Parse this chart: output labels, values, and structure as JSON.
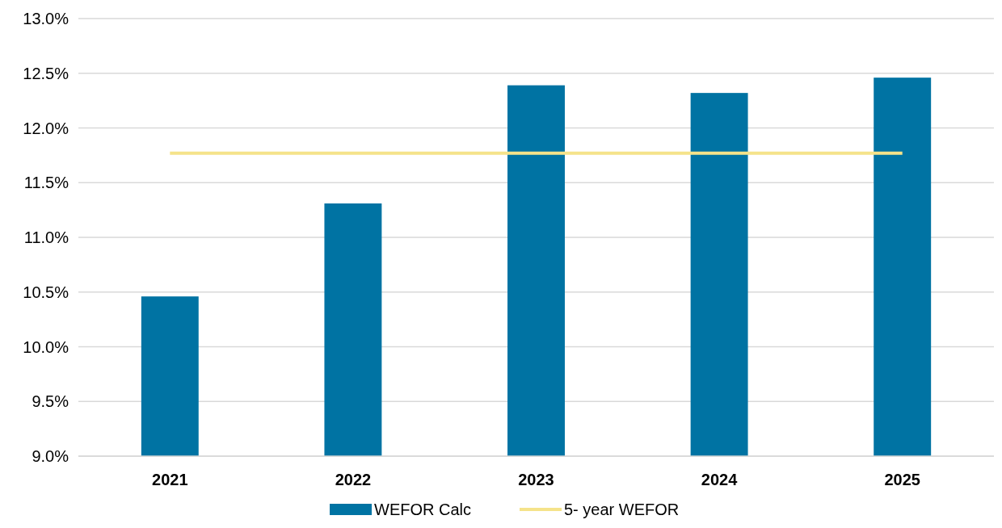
{
  "chart_data": {
    "type": "bar",
    "categories": [
      "2021",
      "2022",
      "2023",
      "2024",
      "2025"
    ],
    "series": [
      {
        "name": "WEFOR Calc",
        "color": "#0073a3",
        "values": [
          10.46,
          11.31,
          12.39,
          12.32,
          12.46
        ]
      },
      {
        "name": "5- year WEFOR",
        "type": "line",
        "color": "#f5e38a",
        "values": [
          11.77,
          11.77,
          11.77,
          11.77,
          11.77
        ]
      }
    ],
    "ylim": [
      9,
      13
    ],
    "yticks": [
      {
        "value": 9,
        "label": "9.0%"
      },
      {
        "value": 9.5,
        "label": "9.5%"
      },
      {
        "value": 10,
        "label": "10.0%"
      },
      {
        "value": 10.5,
        "label": "10.5%"
      },
      {
        "value": 11,
        "label": "11.0%"
      },
      {
        "value": 11.5,
        "label": "11.5%"
      },
      {
        "value": 12,
        "label": "12.0%"
      },
      {
        "value": 12.5,
        "label": "12.5%"
      },
      {
        "value": 13,
        "label": "13.0%"
      }
    ],
    "grid": "y",
    "legend": "bottom",
    "marker": "none",
    "line_style": "solid"
  }
}
